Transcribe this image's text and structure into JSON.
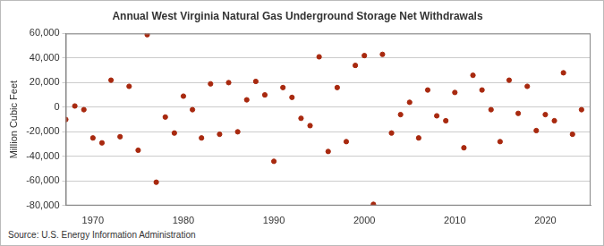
{
  "chart_data": {
    "type": "scatter",
    "title": "Annual West Virginia Natural Gas Underground Storage Net Withdrawals",
    "y_label": "Million Cubic Feet",
    "source": "Source: U.S. Energy Information Administration",
    "x": [
      1967,
      1968,
      1969,
      1970,
      1971,
      1972,
      1973,
      1974,
      1975,
      1976,
      1977,
      1978,
      1979,
      1980,
      1981,
      1982,
      1983,
      1984,
      1985,
      1986,
      1987,
      1988,
      1989,
      1990,
      1991,
      1992,
      1993,
      1994,
      1995,
      1996,
      1997,
      1998,
      1999,
      2000,
      2001,
      2002,
      2003,
      2004,
      2005,
      2006,
      2007,
      2008,
      2009,
      2010,
      2011,
      2012,
      2013,
      2014,
      2015,
      2016,
      2017,
      2018,
      2019,
      2020,
      2021,
      2022,
      2023,
      2024
    ],
    "values": [
      -10000,
      1000,
      -2000,
      -25000,
      -29000,
      22000,
      -24000,
      17000,
      -35000,
      59000,
      -61000,
      -8000,
      -21000,
      9000,
      -2000,
      -25000,
      19000,
      -22000,
      20000,
      -20000,
      6000,
      21000,
      10000,
      -44000,
      16000,
      8000,
      -9000,
      -15000,
      41000,
      -36000,
      16000,
      -28000,
      34000,
      42000,
      -79000,
      43000,
      -21000,
      -6000,
      4000,
      -25000,
      14000,
      -7000,
      -11000,
      12000,
      -33000,
      26000,
      14000,
      -2000,
      -28000,
      22000,
      -5000,
      17000,
      -19000,
      -6000,
      -11000,
      28000,
      -22000,
      -2000
    ],
    "color": "#a8290f",
    "marker": "circle",
    "xlim": [
      1967,
      2025
    ],
    "xticks": [
      1970,
      1980,
      1990,
      2000,
      2010,
      2020
    ],
    "ylim": [
      -80000,
      60000
    ],
    "yticks": [
      {
        "value": -80000,
        "label": "-80,000"
      },
      {
        "value": -60000,
        "label": "-60,000"
      },
      {
        "value": -40000,
        "label": "-40,000"
      },
      {
        "value": -20000,
        "label": "-20,000"
      },
      0,
      {
        "value": 20000,
        "label": "20,000"
      },
      {
        "value": 40000,
        "label": "40,000"
      },
      {
        "value": 60000,
        "label": "60,000"
      }
    ],
    "grid": true
  }
}
